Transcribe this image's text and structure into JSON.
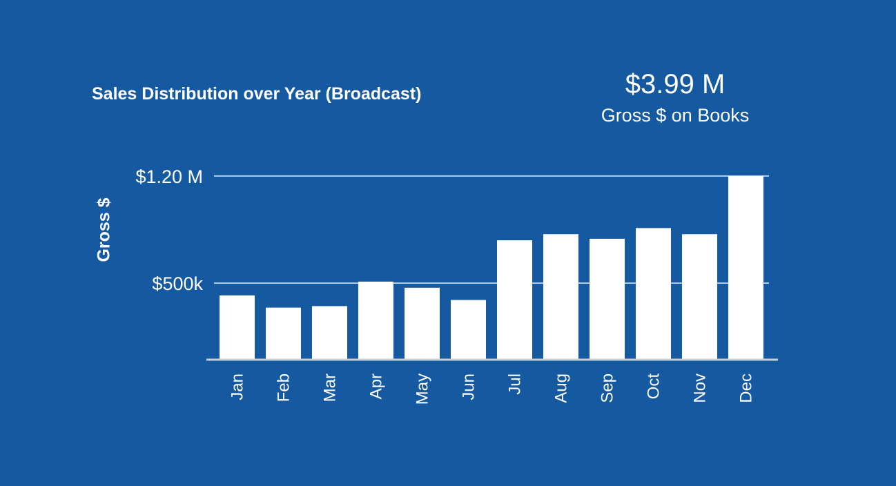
{
  "header": {
    "title": "Sales Distribution over Year (Broadcast)",
    "kpi_value": "$3.99 M",
    "kpi_label": "Gross $ on Books"
  },
  "colors": {
    "background": "#1559a0",
    "bars": "#ffffff",
    "text": "#ffffff"
  },
  "chart_data": {
    "type": "bar",
    "title": "Sales Distribution over Year (Broadcast)",
    "xlabel": "",
    "ylabel": "Gross $",
    "categories": [
      "Jan",
      "Feb",
      "Mar",
      "Apr",
      "May",
      "Jun",
      "Jul",
      "Aug",
      "Sep",
      "Oct",
      "Nov",
      "Dec"
    ],
    "values": [
      420000,
      340000,
      350000,
      510000,
      470000,
      390000,
      780000,
      820000,
      790000,
      860000,
      820000,
      1200000
    ],
    "ylim": [
      0,
      1200000
    ],
    "yticks": [
      {
        "value": 500000,
        "label": "$500k"
      },
      {
        "value": 1200000,
        "label": "$1.20 M"
      }
    ],
    "grid": true,
    "legend": "none"
  }
}
